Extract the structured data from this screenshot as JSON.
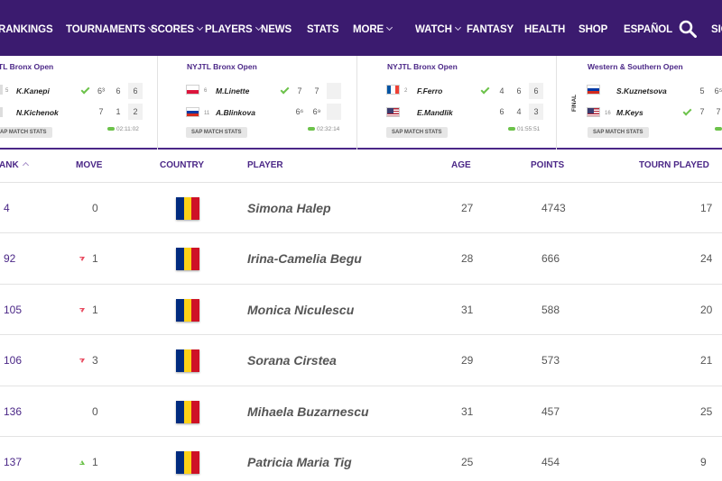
{
  "nav": {
    "items": [
      {
        "label": "RANKINGS",
        "dropdown": false
      },
      {
        "label": "TOURNAMENTS",
        "dropdown": true
      },
      {
        "label": "SCORES",
        "dropdown": true
      },
      {
        "label": "PLAYERS",
        "dropdown": true
      },
      {
        "label": "NEWS",
        "dropdown": false
      },
      {
        "label": "STATS",
        "dropdown": false
      },
      {
        "label": "MORE",
        "dropdown": true
      },
      {
        "label": "WATCH",
        "dropdown": true
      },
      {
        "label": "FANTASY",
        "dropdown": false
      },
      {
        "label": "HEALTH",
        "dropdown": false
      },
      {
        "label": "SHOP",
        "dropdown": false
      },
      {
        "label": "ESPAÑOL",
        "dropdown": false
      },
      {
        "label": "SIG",
        "dropdown": false
      }
    ],
    "search_icon": "search-icon"
  },
  "matches": [
    {
      "tournament": "TL Bronx Open",
      "players": [
        {
          "seed": "5",
          "flag": "",
          "name": "K.Kanepi",
          "winner": true,
          "sets": [
            "6³",
            "6",
            "6"
          ]
        },
        {
          "seed": "",
          "flag": "",
          "name": "N.Kichenok",
          "winner": false,
          "sets": [
            "7",
            "1",
            "2"
          ]
        }
      ],
      "stats_label": "AP MATCH STATS",
      "time": "02:11:02",
      "final_label": ""
    },
    {
      "tournament": "NYJTL Bronx Open",
      "players": [
        {
          "seed": "6",
          "flag": "pl",
          "name": "M.Linette",
          "winner": true,
          "sets": [
            "7",
            "7",
            ""
          ]
        },
        {
          "seed": "11",
          "flag": "ru",
          "name": "A.Blinkova",
          "winner": false,
          "sets": [
            "6⁶",
            "6⁹",
            ""
          ]
        }
      ],
      "stats_label": "SAP MATCH STATS",
      "time": "02:32:14",
      "final_label": ""
    },
    {
      "tournament": "NYJTL Bronx Open",
      "players": [
        {
          "seed": "2",
          "flag": "fr",
          "name": "F.Ferro",
          "winner": true,
          "sets": [
            "4",
            "6",
            "6"
          ]
        },
        {
          "seed": "",
          "flag": "us",
          "name": "E.Mandlik",
          "winner": false,
          "sets": [
            "6",
            "4",
            "3"
          ]
        }
      ],
      "stats_label": "SAP MATCH STATS",
      "time": "01:55:51",
      "final_label": ""
    },
    {
      "tournament": "Western & Southern Open",
      "players": [
        {
          "seed": "",
          "flag": "ru",
          "name": "S.Kuznetsova",
          "winner": false,
          "sets": [
            "5",
            "6⁵",
            ""
          ]
        },
        {
          "seed": "16",
          "flag": "us",
          "name": "M.Keys",
          "winner": true,
          "sets": [
            "7",
            "7",
            ""
          ]
        }
      ],
      "stats_label": "SAP MATCH STATS",
      "time": "",
      "final_label": "FINAL"
    }
  ],
  "table": {
    "headers": {
      "rank": "ANK",
      "move": "MOVE",
      "country": "COUNTRY",
      "player": "PLAYER",
      "age": "AGE",
      "points": "POINTS",
      "tourn": "TOURN PLAYED"
    },
    "rows": [
      {
        "rank": "4",
        "move": "0",
        "move_dir": "none",
        "player": "Simona Halep",
        "age": "27",
        "points": "4743",
        "tourn": "17"
      },
      {
        "rank": "92",
        "move": "1",
        "move_dir": "down",
        "player": "Irina-Camelia Begu",
        "age": "28",
        "points": "666",
        "tourn": "24"
      },
      {
        "rank": "105",
        "move": "1",
        "move_dir": "down",
        "player": "Monica Niculescu",
        "age": "31",
        "points": "588",
        "tourn": "20"
      },
      {
        "rank": "106",
        "move": "3",
        "move_dir": "down",
        "player": "Sorana Cirstea",
        "age": "29",
        "points": "573",
        "tourn": "21"
      },
      {
        "rank": "136",
        "move": "0",
        "move_dir": "none",
        "player": "Mihaela Buzarnescu",
        "age": "31",
        "points": "457",
        "tourn": "25"
      },
      {
        "rank": "137",
        "move": "1",
        "move_dir": "up",
        "player": "Patricia Maria Tig",
        "age": "25",
        "points": "454",
        "tourn": "9"
      }
    ]
  },
  "colors": {
    "brand": "#3b1b6f",
    "accent": "#4b2787",
    "winner_check": "#6cc24a",
    "move_down": "#e84a5f",
    "move_up": "#6cc24a",
    "romania_flag": [
      "#002b7f",
      "#fcd116",
      "#ce1126"
    ]
  }
}
